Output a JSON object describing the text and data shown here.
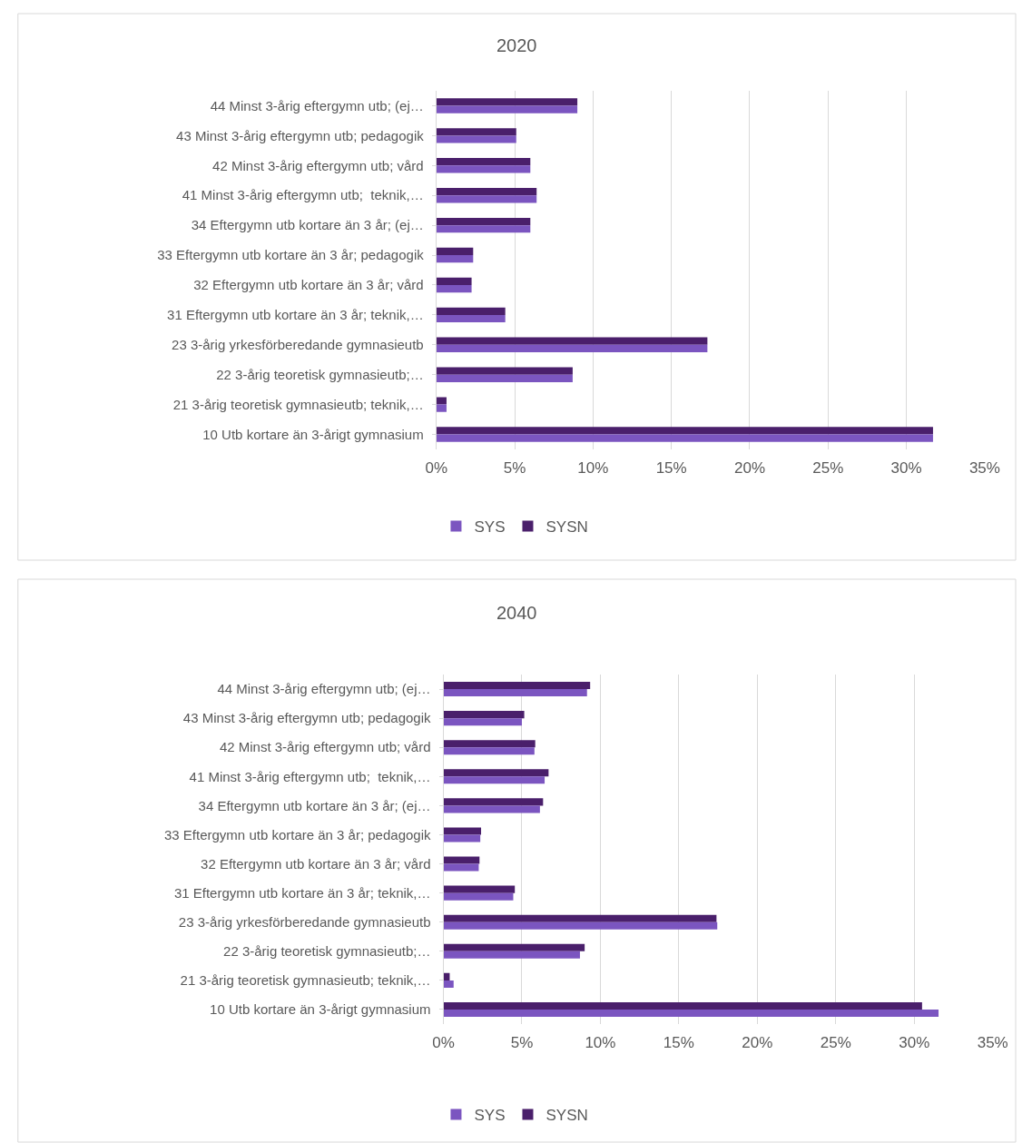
{
  "chart_data": [
    {
      "type": "bar",
      "orientation": "horizontal",
      "title": "2020",
      "categories": [
        "44 Minst 3-årig eftergymn utb; (ej…",
        "43 Minst 3-årig eftergymn utb; pedagogik",
        "42 Minst 3-årig eftergymn utb; vård",
        "41 Minst 3-årig eftergymn utb;  teknik,…",
        "34 Eftergymn utb kortare än 3 år; (ej…",
        "33 Eftergymn utb kortare än 3 år; pedagogik",
        "32 Eftergymn utb kortare än 3 år; vård",
        "31 Eftergymn utb kortare än 3 år; teknik,…",
        "23 3-årig yrkesförberedande gymnasieutb",
        "22 3-årig teoretisk gymnasieutb;…",
        "21 3-årig teoretisk gymnasieutb; teknik,…",
        "10 Utb kortare än 3-årigt gymnasium"
      ],
      "series": [
        {
          "name": "SYS",
          "color": "#7b55c0",
          "values": [
            9.0,
            5.1,
            6.0,
            6.4,
            6.0,
            2.35,
            2.25,
            4.4,
            17.3,
            8.7,
            0.65,
            31.7
          ]
        },
        {
          "name": "SYSN",
          "color": "#4a1f6b",
          "values": [
            9.0,
            5.1,
            6.0,
            6.4,
            6.0,
            2.35,
            2.25,
            4.4,
            17.3,
            8.7,
            0.65,
            31.7
          ]
        }
      ],
      "xlim": [
        0,
        35
      ],
      "xticks": [
        {
          "value": 0,
          "label": "0%"
        },
        {
          "value": 5,
          "label": "5%"
        },
        {
          "value": 10,
          "label": "10%"
        },
        {
          "value": 15,
          "label": "15%"
        },
        {
          "value": 20,
          "label": "20%"
        },
        {
          "value": 25,
          "label": "25%"
        },
        {
          "value": 30,
          "label": "30%"
        },
        {
          "value": 35,
          "label": "35%"
        }
      ],
      "grid": "x",
      "legend": "bottom"
    },
    {
      "type": "bar",
      "orientation": "horizontal",
      "title": "2040",
      "categories": [
        "44 Minst 3-årig eftergymn utb; (ej…",
        "43 Minst 3-årig eftergymn utb; pedagogik",
        "42 Minst 3-årig eftergymn utb; vård",
        "41 Minst 3-årig eftergymn utb;  teknik,…",
        "34 Eftergymn utb kortare än 3 år; (ej…",
        "33 Eftergymn utb kortare än 3 år; pedagogik",
        "32 Eftergymn utb kortare än 3 år; vård",
        "31 Eftergymn utb kortare än 3 år; teknik,…",
        "23 3-årig yrkesförberedande gymnasieutb",
        "22 3-årig teoretisk gymnasieutb;…",
        "21 3-årig teoretisk gymnasieutb; teknik,…",
        "10 Utb kortare än 3-årigt gymnasium"
      ],
      "series": [
        {
          "name": "SYS",
          "color": "#7b55c0",
          "values": [
            9.15,
            5.0,
            5.8,
            6.45,
            6.15,
            2.35,
            2.25,
            4.45,
            17.45,
            8.7,
            0.65,
            31.55
          ]
        },
        {
          "name": "SYSN",
          "color": "#4a1f6b",
          "values": [
            9.35,
            5.15,
            5.85,
            6.7,
            6.35,
            2.4,
            2.3,
            4.55,
            17.4,
            9.0,
            0.4,
            30.5
          ]
        }
      ],
      "xlim": [
        0,
        35
      ],
      "xticks": [
        {
          "value": 0,
          "label": "0%"
        },
        {
          "value": 5,
          "label": "5%"
        },
        {
          "value": 10,
          "label": "10%"
        },
        {
          "value": 15,
          "label": "15%"
        },
        {
          "value": 20,
          "label": "20%"
        },
        {
          "value": 25,
          "label": "25%"
        },
        {
          "value": 30,
          "label": "30%"
        },
        {
          "value": 35,
          "label": "35%"
        }
      ],
      "grid": "x",
      "legend": "bottom"
    }
  ]
}
